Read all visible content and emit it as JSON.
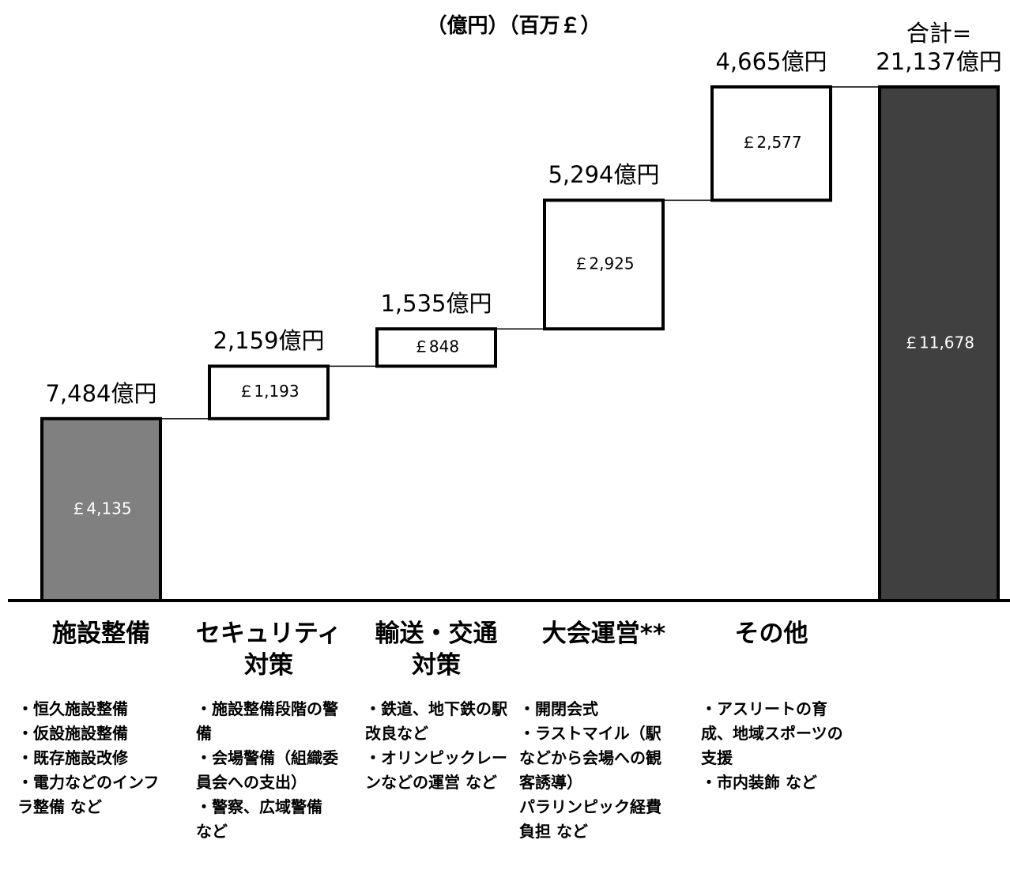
{
  "chart_data": {
    "type": "waterfall",
    "title": "（億円）（百万￡）",
    "categories": [
      "施設整備",
      "セキュリティ\n対策",
      "輸送・交通\n対策",
      "大会運営**",
      "その他",
      null
    ],
    "values": [
      4135,
      1193,
      848,
      2925,
      2577,
      11678
    ],
    "value_labels": [
      "￡4,135",
      "￡1,193",
      "￡848",
      "￡2,925",
      "￡2,577",
      "￡11,678"
    ],
    "yen_labels": [
      "7,484億円",
      "2,159億円",
      "1,535億円",
      "5,294億円",
      "4,665億円",
      "合計=\n21,137億円"
    ],
    "is_total": [
      false,
      false,
      false,
      false,
      false,
      true
    ],
    "colors": [
      "#808080",
      "#ffffff",
      "#ffffff",
      "#ffffff",
      "#ffffff",
      "#404040"
    ],
    "notes": [
      [
        "・恒久施設整備",
        "・仮設施設整備",
        "・既存施設改修",
        "・電力などのインフラ整備 など"
      ],
      [
        "・施設整備段階の警備",
        "・会場警備（組織委員会への支出）",
        "・警察、広域警備 など"
      ],
      [
        "・鉄道、地下鉄の駅改良など",
        "・オリンピックレーンなどの運営 など"
      ],
      [
        "・開閉会式",
        "・ラストマイル（駅などから会場への観客誘導）",
        "パラリンピック経費負担 など"
      ],
      [
        "・アスリートの育成、地域スポーツの支援",
        "・市内装飾 など"
      ]
    ],
    "ylim": [
      0,
      13000
    ]
  }
}
